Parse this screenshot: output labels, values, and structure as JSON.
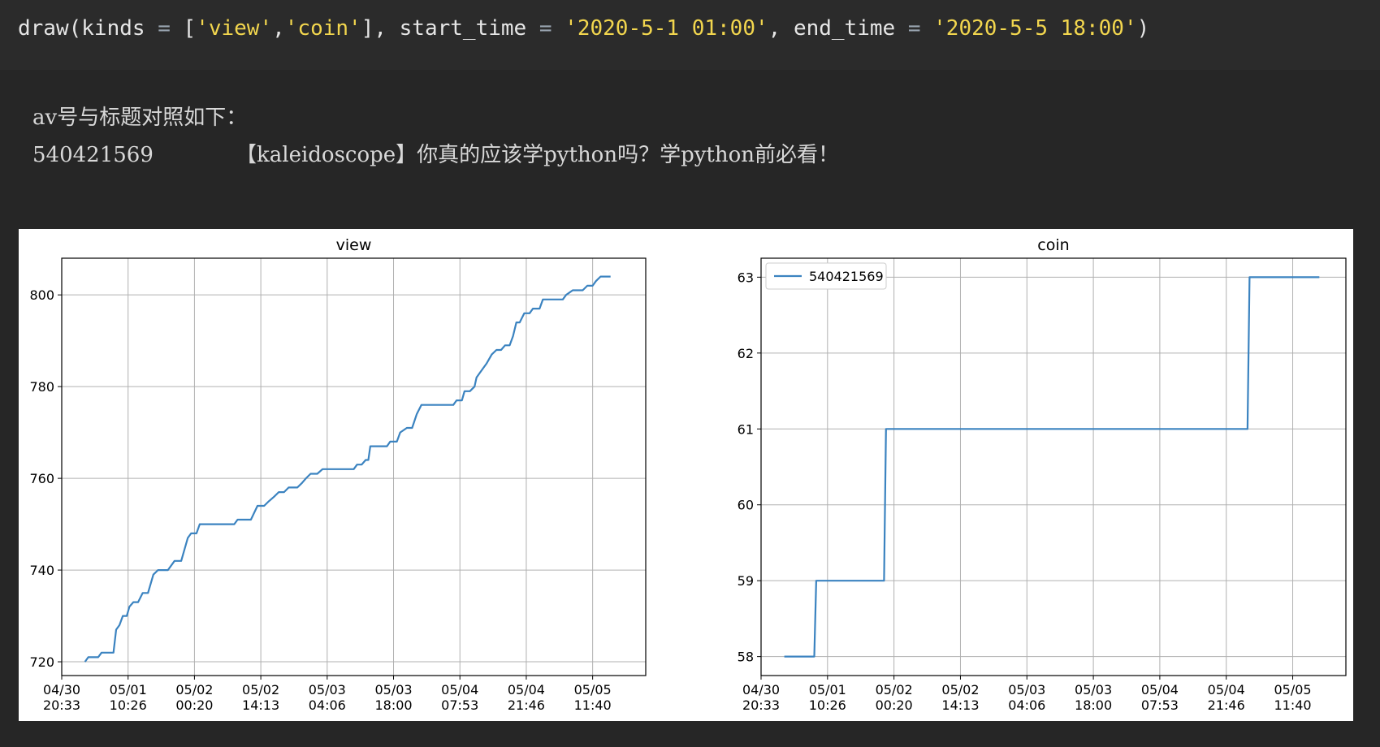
{
  "code": {
    "fn": "draw",
    "kinds_kw": "kinds",
    "kind_view": "'view'",
    "kind_coin": "'coin'",
    "start_kw": "start_time",
    "start_val": "'2020-5-1 01:00'",
    "end_kw": "end_time",
    "end_val": "'2020-5-5 18:00'"
  },
  "text": {
    "heading": "av号与标题对照如下：",
    "av_id": "540421569",
    "title": "【kaleidoscope】你真的应该学python吗？学python前必看！"
  },
  "colors": {
    "line": "#3b83c0",
    "grid": "#b0b0b0"
  },
  "chart_data": [
    {
      "type": "line",
      "title": "view",
      "x_ticks": [
        "04/30\n20:33",
        "05/01\n10:26",
        "05/02\n00:20",
        "05/02\n14:13",
        "05/03\n04:06",
        "05/03\n18:00",
        "05/04\n07:53",
        "05/04\n21:46",
        "05/05\n11:40"
      ],
      "y_ticks": [
        720,
        740,
        760,
        780,
        800
      ],
      "xlim": [
        0,
        8.8
      ],
      "ylim": [
        717,
        808
      ],
      "grid": true,
      "series": [
        {
          "points": [
            [
              0.35,
              720
            ],
            [
              0.4,
              721
            ],
            [
              0.55,
              721
            ],
            [
              0.6,
              722
            ],
            [
              0.78,
              722
            ],
            [
              0.82,
              727
            ],
            [
              0.87,
              728
            ],
            [
              0.92,
              730
            ],
            [
              0.98,
              730
            ],
            [
              1.02,
              732
            ],
            [
              1.08,
              733
            ],
            [
              1.15,
              733
            ],
            [
              1.22,
              735
            ],
            [
              1.3,
              735
            ],
            [
              1.38,
              739
            ],
            [
              1.45,
              740
            ],
            [
              1.6,
              740
            ],
            [
              1.7,
              742
            ],
            [
              1.8,
              742
            ],
            [
              1.9,
              747
            ],
            [
              1.95,
              748
            ],
            [
              2.03,
              748
            ],
            [
              2.08,
              750
            ],
            [
              2.2,
              750
            ],
            [
              2.6,
              750
            ],
            [
              2.65,
              751
            ],
            [
              2.85,
              751
            ],
            [
              2.95,
              754
            ],
            [
              3.05,
              754
            ],
            [
              3.12,
              755
            ],
            [
              3.2,
              756
            ],
            [
              3.27,
              757
            ],
            [
              3.35,
              757
            ],
            [
              3.42,
              758
            ],
            [
              3.55,
              758
            ],
            [
              3.62,
              759
            ],
            [
              3.68,
              760
            ],
            [
              3.75,
              761
            ],
            [
              3.85,
              761
            ],
            [
              3.93,
              762
            ],
            [
              4.4,
              762
            ],
            [
              4.45,
              763
            ],
            [
              4.52,
              763
            ],
            [
              4.58,
              764
            ],
            [
              4.62,
              764
            ],
            [
              4.65,
              767
            ],
            [
              4.9,
              767
            ],
            [
              4.95,
              768
            ],
            [
              5.05,
              768
            ],
            [
              5.1,
              770
            ],
            [
              5.2,
              771
            ],
            [
              5.28,
              771
            ],
            [
              5.35,
              774
            ],
            [
              5.42,
              776
            ],
            [
              5.9,
              776
            ],
            [
              5.95,
              777
            ],
            [
              6.03,
              777
            ],
            [
              6.07,
              779
            ],
            [
              6.15,
              779
            ],
            [
              6.22,
              780
            ],
            [
              6.25,
              782
            ],
            [
              6.3,
              783
            ],
            [
              6.4,
              785
            ],
            [
              6.48,
              787
            ],
            [
              6.55,
              788
            ],
            [
              6.62,
              788
            ],
            [
              6.68,
              789
            ],
            [
              6.75,
              789
            ],
            [
              6.8,
              791
            ],
            [
              6.85,
              794
            ],
            [
              6.9,
              794
            ],
            [
              6.97,
              796
            ],
            [
              7.05,
              796
            ],
            [
              7.1,
              797
            ],
            [
              7.2,
              797
            ],
            [
              7.25,
              799
            ],
            [
              7.55,
              799
            ],
            [
              7.6,
              800
            ],
            [
              7.7,
              801
            ],
            [
              7.85,
              801
            ],
            [
              7.92,
              802
            ],
            [
              8.0,
              802
            ],
            [
              8.05,
              803
            ],
            [
              8.12,
              804
            ],
            [
              8.27,
              804
            ]
          ]
        }
      ]
    },
    {
      "type": "line",
      "title": "coin",
      "x_ticks": [
        "04/30\n20:33",
        "05/01\n10:26",
        "05/02\n00:20",
        "05/02\n14:13",
        "05/03\n04:06",
        "05/03\n18:00",
        "05/04\n07:53",
        "05/04\n21:46",
        "05/05\n11:40"
      ],
      "y_ticks": [
        58,
        59,
        60,
        61,
        62,
        63
      ],
      "xlim": [
        0,
        8.8
      ],
      "ylim": [
        57.75,
        63.25
      ],
      "grid": true,
      "legend": {
        "placement": "top-left",
        "entries": [
          "540421569"
        ]
      },
      "series": [
        {
          "name": "540421569",
          "points": [
            [
              0.35,
              58
            ],
            [
              0.8,
              58
            ],
            [
              0.83,
              59
            ],
            [
              1.85,
              59
            ],
            [
              1.88,
              61
            ],
            [
              7.32,
              61
            ],
            [
              7.35,
              63
            ],
            [
              8.4,
              63
            ]
          ]
        }
      ]
    }
  ]
}
